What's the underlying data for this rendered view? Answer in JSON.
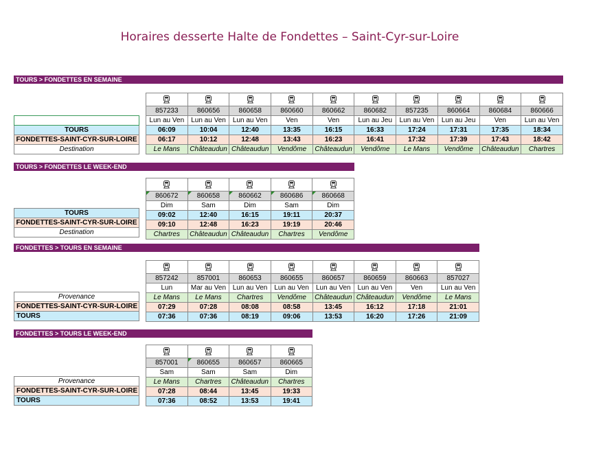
{
  "title": "Horaires desserte Halte de Fondettes – Saint-Cyr-sur-Loire",
  "colors": {
    "title": "#8a1f55",
    "section_bar": "#7b1f6a",
    "tours_row": "#c9ecf9",
    "fondettes_row": "#fbe2d6",
    "place_row": "#dbf0d2",
    "train_number_row": "#d9d9d9"
  },
  "train_icon": "train-icon",
  "sections": [
    {
      "heading": "TOURS > FONDETTES EN SEMAINE",
      "labels": {
        "tours": "TOURS",
        "fondettes": "FONDETTES-SAINT-CYR-SUR-LOIRE",
        "place": "Destination"
      },
      "trains": [
        "857233",
        "860656",
        "860658",
        "860660",
        "860662",
        "860682",
        "857235",
        "860664",
        "860684",
        "860666"
      ],
      "days": [
        "Lun au Ven",
        "Lun au Ven",
        "Lun au Ven",
        "Ven",
        "Ven",
        "Lun au Jeu",
        "Lun au Ven",
        "Lun au Jeu",
        "Ven",
        "Lun au Ven"
      ],
      "tours": [
        "06:09",
        "10:04",
        "12:40",
        "13:35",
        "16:15",
        "16:33",
        "17:24",
        "17:31",
        "17:35",
        "18:34"
      ],
      "fondettes": [
        "06:17",
        "10:12",
        "12:48",
        "13:43",
        "16:23",
        "16:41",
        "17:32",
        "17:39",
        "17:43",
        "18:42"
      ],
      "place": [
        "Le Mans",
        "Châteaudun",
        "Châteaudun",
        "Vendôme",
        "Châteaudun",
        "Vendôme",
        "Le Mans",
        "Vendôme",
        "Châteaudun",
        "Chartres"
      ]
    },
    {
      "heading": "TOURS > FONDETTES LE WEEK-END",
      "labels": {
        "tours": "TOURS",
        "fondettes": "FONDETTES-SAINT-CYR-SUR-LOIRE",
        "place": "Destination"
      },
      "trains": [
        "860672",
        "860658",
        "860662",
        "860686",
        "860668"
      ],
      "days": [
        "Dim",
        "Sam",
        "Dim",
        "Sam",
        "Dim"
      ],
      "tours": [
        "09:02",
        "12:40",
        "16:15",
        "19:11",
        "20:37"
      ],
      "fondettes": [
        "09:10",
        "12:48",
        "16:23",
        "19:19",
        "20:46"
      ],
      "place": [
        "Chartres",
        "Châteaudun",
        "Châteaudun",
        "Chartres",
        "Vendôme"
      ]
    },
    {
      "heading": "FONDETTES > TOURS EN SEMAINE",
      "labels": {
        "tours": "TOURS",
        "fondettes": "FONDETTES-SAINT-CYR-SUR-LOIRE",
        "place": "Provenance"
      },
      "trains": [
        "857242",
        "857001",
        "860653",
        "860655",
        "860657",
        "860659",
        "860663",
        "857027"
      ],
      "days": [
        "Lun",
        "Mar au Ven",
        "Lun au Ven",
        "Lun au Ven",
        "Lun au Ven",
        "Lun au Ven",
        "Ven",
        "Lun au Ven"
      ],
      "place": [
        "Le Mans",
        "Le Mans",
        "Chartres",
        "Vendôme",
        "Châteaudun",
        "Châteaudun",
        "Vendôme",
        "Le Mans"
      ],
      "fondettes": [
        "07:29",
        "07:28",
        "08:08",
        "08:58",
        "13:45",
        "16:12",
        "17:18",
        "21:01"
      ],
      "tours": [
        "07:36",
        "07:36",
        "08:19",
        "09:06",
        "13:53",
        "16:20",
        "17:26",
        "21:09"
      ]
    },
    {
      "heading": "FONDETTES > TOURS LE WEEK-END",
      "labels": {
        "tours": "TOURS",
        "fondettes": "FONDETTES-SAINT-CYR-SUR-LOIRE",
        "place": "Provenance"
      },
      "trains": [
        "857001",
        "860655",
        "860657",
        "860665"
      ],
      "days": [
        "Sam",
        "Sam",
        "Sam",
        "Dim"
      ],
      "place": [
        "Le Mans",
        "Chartres",
        "Châteaudun",
        "Chartres"
      ],
      "fondettes": [
        "07:28",
        "08:44",
        "13:45",
        "19:33"
      ],
      "tours": [
        "07:36",
        "08:52",
        "13:53",
        "19:41"
      ]
    }
  ]
}
